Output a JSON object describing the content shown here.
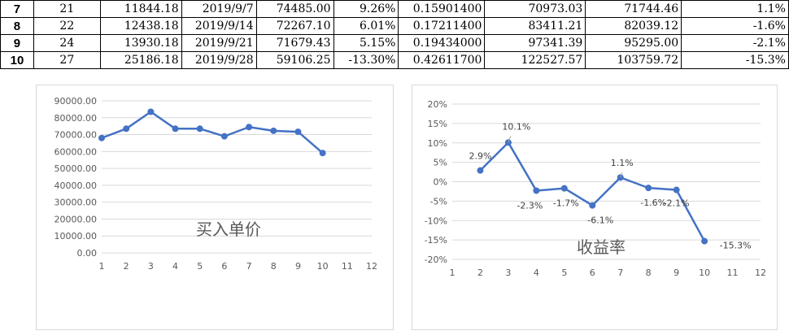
{
  "table": {
    "rows": [
      [
        "7",
        "21",
        "11844.18",
        "2019/9/7",
        "74485.00",
        "9.26%",
        "0.15901400",
        "70973.03",
        "71744.46",
        "1.1%"
      ],
      [
        "8",
        "22",
        "12438.18",
        "2019/9/14",
        "72267.10",
        "6.01%",
        "0.17211400",
        "83411.21",
        "82039.12",
        "-1.6%"
      ],
      [
        "9",
        "24",
        "13930.18",
        "2019/9/21",
        "71679.43",
        "5.15%",
        "0.19434000",
        "97341.39",
        "95295.00",
        "-2.1%"
      ],
      [
        "10",
        "27",
        "25186.18",
        "2019/9/28",
        "59106.25",
        "-13.30%",
        "0.42611700",
        "122527.57",
        "103759.72",
        "-15.3%"
      ]
    ]
  },
  "chart_data": [
    {
      "type": "line",
      "title": "买入单价",
      "x": [
        1,
        2,
        3,
        4,
        5,
        6,
        7,
        8,
        9,
        10
      ],
      "series": [
        {
          "values": [
            68000,
            73500,
            83500,
            73500,
            73500,
            69000,
            74485.0,
            72267.1,
            71679.43,
            59106.25
          ]
        }
      ],
      "xlim": [
        1,
        12
      ],
      "xticks": [
        "1",
        "2",
        "3",
        "4",
        "5",
        "6",
        "7",
        "8",
        "9",
        "10",
        "11",
        "12"
      ],
      "ylim": [
        0,
        90000
      ],
      "yticks": [
        "0.00",
        "10000.00",
        "20000.00",
        "30000.00",
        "40000.00",
        "50000.00",
        "60000.00",
        "70000.00",
        "80000.00",
        "90000.00"
      ],
      "grid": true,
      "color": "#4472c4"
    },
    {
      "type": "line",
      "title": "收益率",
      "x": [
        2,
        3,
        4,
        5,
        6,
        7,
        8,
        9,
        10
      ],
      "series": [
        {
          "values": [
            2.9,
            10.1,
            -2.3,
            -1.7,
            -6.1,
            1.1,
            -1.6,
            -2.1,
            -15.3
          ],
          "labels": [
            "2.9%",
            "10.1%",
            "-2.3%",
            "-1.7%",
            "-6.1%",
            "1.1%",
            "-1.6%",
            "-2.1%",
            "-15.3%"
          ]
        }
      ],
      "xlim": [
        1,
        12
      ],
      "xticks": [
        "1",
        "2",
        "3",
        "4",
        "5",
        "6",
        "7",
        "8",
        "9",
        "10",
        "11",
        "12"
      ],
      "ylim": [
        -20,
        20
      ],
      "yticks": [
        "-20%",
        "-15%",
        "-10%",
        "-5%",
        "0%",
        "5%",
        "10%",
        "15%",
        "20%"
      ],
      "grid": true,
      "color": "#4472c4"
    }
  ]
}
